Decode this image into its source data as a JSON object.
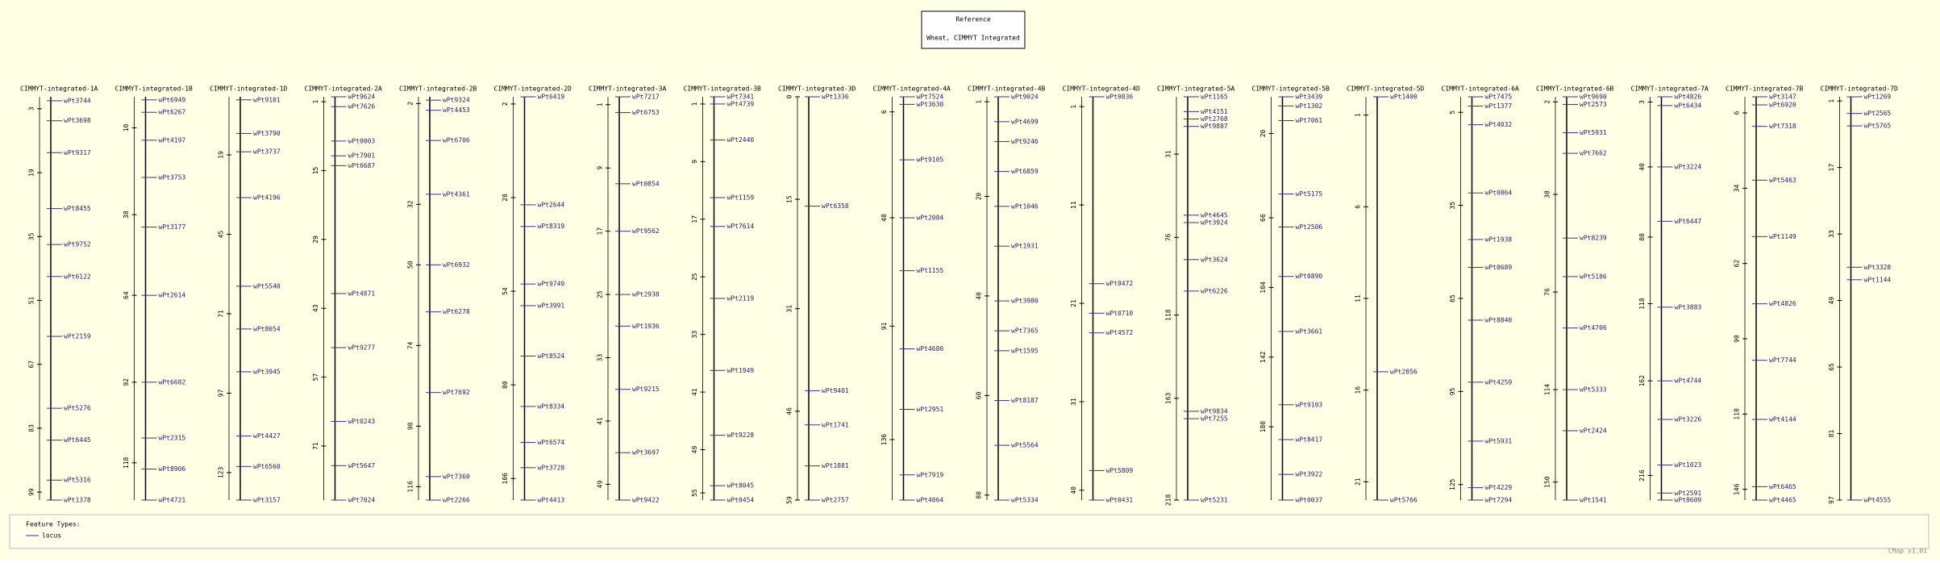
{
  "header": {
    "title": "Reference",
    "subtitle": "Wheat, CIMMYT Integrated"
  },
  "maps": [
    {
      "title": "CIMMYT-integrated-1A",
      "ylim": [
        0,
        101
      ],
      "ticks": [
        3,
        19,
        35,
        51,
        67,
        83,
        99
      ],
      "markers": [
        {
          "label": "wPt3744",
          "pos": 1
        },
        {
          "label": "wPt3698",
          "pos": 6
        },
        {
          "label": "wPt9317",
          "pos": 14
        },
        {
          "label": "wPt8455",
          "pos": 28
        },
        {
          "label": "wPt9752",
          "pos": 37
        },
        {
          "label": "wPt6122",
          "pos": 45
        },
        {
          "label": "wPt2159",
          "pos": 60
        },
        {
          "label": "wPt5276",
          "pos": 78
        },
        {
          "label": "wPt6445",
          "pos": 86
        },
        {
          "label": "wPt5316",
          "pos": 96
        },
        {
          "label": "wPt1378",
          "pos": 101
        }
      ]
    },
    {
      "title": "CIMMYT-integrated-1B",
      "ylim": [
        0,
        130
      ],
      "ticks": [
        10,
        38,
        64,
        92,
        118
      ],
      "markers": [
        {
          "label": "wPt6949",
          "pos": 1
        },
        {
          "label": "wPt6267",
          "pos": 5
        },
        {
          "label": "wPt4197",
          "pos": 14
        },
        {
          "label": "wPt3753",
          "pos": 26
        },
        {
          "label": "wPt3177",
          "pos": 42
        },
        {
          "label": "wPt2614",
          "pos": 64
        },
        {
          "label": "wPt6682",
          "pos": 92
        },
        {
          "label": "wPt2315",
          "pos": 110
        },
        {
          "label": "wPt8906",
          "pos": 120
        },
        {
          "label": "wPt4721",
          "pos": 130
        }
      ]
    },
    {
      "title": "CIMMYT-integrated-1D",
      "ylim": [
        0,
        132
      ],
      "ticks": [
        19,
        45,
        71,
        97,
        123
      ],
      "markers": [
        {
          "label": "wPt9101",
          "pos": 1
        },
        {
          "label": "wPt3790",
          "pos": 12
        },
        {
          "label": "wPt3737",
          "pos": 18
        },
        {
          "label": "wPt4196",
          "pos": 33
        },
        {
          "label": "wPt5540",
          "pos": 62
        },
        {
          "label": "wPt8054",
          "pos": 76
        },
        {
          "label": "wPt3945",
          "pos": 90
        },
        {
          "label": "wPt4427",
          "pos": 111
        },
        {
          "label": "wPt6560",
          "pos": 121
        },
        {
          "label": "wPt3157",
          "pos": 132
        }
      ]
    },
    {
      "title": "CIMMYT-integrated-2A",
      "ylim": [
        0,
        82
      ],
      "ticks": [
        1,
        15,
        29,
        43,
        57,
        71
      ],
      "markers": [
        {
          "label": "wPt9624",
          "pos": 0
        },
        {
          "label": "wPt7626",
          "pos": 2
        },
        {
          "label": "wPt0003",
          "pos": 9
        },
        {
          "label": "wPt7901",
          "pos": 12
        },
        {
          "label": "wPt6687",
          "pos": 14
        },
        {
          "label": "wPt4871",
          "pos": 40
        },
        {
          "label": "wPt9277",
          "pos": 51
        },
        {
          "label": "wPt0243",
          "pos": 66
        },
        {
          "label": "wPt5647",
          "pos": 75
        },
        {
          "label": "wPt7024",
          "pos": 82
        }
      ]
    },
    {
      "title": "CIMMYT-integrated-2B",
      "ylim": [
        0,
        120
      ],
      "ticks": [
        2,
        32,
        50,
        74,
        98,
        116
      ],
      "markers": [
        {
          "label": "wPt9324",
          "pos": 1
        },
        {
          "label": "wPt4453",
          "pos": 4
        },
        {
          "label": "wPt6706",
          "pos": 13
        },
        {
          "label": "wPt4361",
          "pos": 29
        },
        {
          "label": "wPt6932",
          "pos": 50
        },
        {
          "label": "wPt6278",
          "pos": 64
        },
        {
          "label": "wPt7692",
          "pos": 88
        },
        {
          "label": "wPt7360",
          "pos": 113
        },
        {
          "label": "wPt2266",
          "pos": 120
        }
      ]
    },
    {
      "title": "CIMMYT-integrated-2D",
      "ylim": [
        0,
        112
      ],
      "ticks": [
        2,
        28,
        54,
        80,
        106
      ],
      "markers": [
        {
          "label": "wPt6419",
          "pos": 0
        },
        {
          "label": "wPt2644",
          "pos": 30
        },
        {
          "label": "wPt8319",
          "pos": 36
        },
        {
          "label": "wPt9749",
          "pos": 52
        },
        {
          "label": "wPt3991",
          "pos": 58
        },
        {
          "label": "wPt8524",
          "pos": 72
        },
        {
          "label": "wPt8334",
          "pos": 86
        },
        {
          "label": "wPt6574",
          "pos": 96
        },
        {
          "label": "wPt3728",
          "pos": 103
        },
        {
          "label": "wPt4413",
          "pos": 112
        }
      ]
    },
    {
      "title": "CIMMYT-integrated-3A",
      "ylim": [
        0,
        51
      ],
      "ticks": [
        1,
        9,
        17,
        25,
        33,
        41,
        49
      ],
      "markers": [
        {
          "label": "wPt7217",
          "pos": 0
        },
        {
          "label": "wPt6753",
          "pos": 2
        },
        {
          "label": "wPt0854",
          "pos": 11
        },
        {
          "label": "wPt9562",
          "pos": 17
        },
        {
          "label": "wPt2938",
          "pos": 25
        },
        {
          "label": "wPt1936",
          "pos": 29
        },
        {
          "label": "wPt9215",
          "pos": 37
        },
        {
          "label": "wPt3697",
          "pos": 45
        },
        {
          "label": "wPt9422",
          "pos": 51
        }
      ]
    },
    {
      "title": "CIMMYT-integrated-3B",
      "ylim": [
        0,
        56
      ],
      "ticks": [
        1,
        9,
        17,
        25,
        33,
        41,
        49,
        55
      ],
      "markers": [
        {
          "label": "wPt7341",
          "pos": 0
        },
        {
          "label": "wPt4739",
          "pos": 1
        },
        {
          "label": "wPt2440",
          "pos": 6
        },
        {
          "label": "wPt1159",
          "pos": 14
        },
        {
          "label": "wPt7614",
          "pos": 18
        },
        {
          "label": "wPt2119",
          "pos": 28
        },
        {
          "label": "wPt1949",
          "pos": 38
        },
        {
          "label": "wPt9228",
          "pos": 47
        },
        {
          "label": "wPt8045",
          "pos": 54
        },
        {
          "label": "wPt0454",
          "pos": 56
        }
      ]
    },
    {
      "title": "CIMMYT-integrated-3D",
      "ylim": [
        0,
        59
      ],
      "ticks": [
        0,
        15,
        31,
        46,
        59
      ],
      "markers": [
        {
          "label": "wPt1336",
          "pos": 0
        },
        {
          "label": "wPt6358",
          "pos": 16
        },
        {
          "label": "wPt9401",
          "pos": 43
        },
        {
          "label": "wPt1741",
          "pos": 48
        },
        {
          "label": "wPt1881",
          "pos": 54
        },
        {
          "label": "wPt2757",
          "pos": 59
        }
      ]
    },
    {
      "title": "CIMMYT-integrated-4A",
      "ylim": [
        0,
        160
      ],
      "ticks": [
        6,
        48,
        91,
        136
      ],
      "markers": [
        {
          "label": "wPt7524",
          "pos": 0
        },
        {
          "label": "wPt3630",
          "pos": 3
        },
        {
          "label": "wPt9105",
          "pos": 25
        },
        {
          "label": "wPt2084",
          "pos": 48
        },
        {
          "label": "wPt1155",
          "pos": 69
        },
        {
          "label": "wPt4680",
          "pos": 100
        },
        {
          "label": "wPt2951",
          "pos": 124
        },
        {
          "label": "wPt7919",
          "pos": 150
        },
        {
          "label": "wPt4064",
          "pos": 160
        }
      ]
    },
    {
      "title": "CIMMYT-integrated-4B",
      "ylim": [
        0,
        81
      ],
      "ticks": [
        1,
        20,
        40,
        60,
        80
      ],
      "markers": [
        {
          "label": "wPt9024",
          "pos": 0
        },
        {
          "label": "wPt4699",
          "pos": 5
        },
        {
          "label": "wPt9246",
          "pos": 9
        },
        {
          "label": "wPt6859",
          "pos": 15
        },
        {
          "label": "wPt1046",
          "pos": 22
        },
        {
          "label": "wPt1931",
          "pos": 30
        },
        {
          "label": "wPt3980",
          "pos": 41
        },
        {
          "label": "wPt7365",
          "pos": 47
        },
        {
          "label": "wPt1595",
          "pos": 51
        },
        {
          "label": "wPt8187",
          "pos": 61
        },
        {
          "label": "wPt5564",
          "pos": 70
        },
        {
          "label": "wPt5334",
          "pos": 81
        }
      ]
    },
    {
      "title": "CIMMYT-integrated-4D",
      "ylim": [
        0,
        41
      ],
      "ticks": [
        1,
        11,
        21,
        31,
        40
      ],
      "markers": [
        {
          "label": "wPt0836",
          "pos": 0
        },
        {
          "label": "wPt0472",
          "pos": 19
        },
        {
          "label": "wPt0710",
          "pos": 22
        },
        {
          "label": "wPt4572",
          "pos": 24
        },
        {
          "label": "wPt5809",
          "pos": 38
        },
        {
          "label": "wPt0431",
          "pos": 41
        }
      ]
    },
    {
      "title": "CIMMYT-integrated-5A",
      "ylim": [
        0,
        218
      ],
      "ticks": [
        31,
        76,
        118,
        163,
        218
      ],
      "markers": [
        {
          "label": "wPt1165",
          "pos": 0
        },
        {
          "label": "wPt4151",
          "pos": 8
        },
        {
          "label": "wPt2768",
          "pos": 12
        },
        {
          "label": "wPt9887",
          "pos": 16
        },
        {
          "label": "wPt4645",
          "pos": 64
        },
        {
          "label": "wPt3924",
          "pos": 68
        },
        {
          "label": "wPt3624",
          "pos": 88
        },
        {
          "label": "wPt6226",
          "pos": 105
        },
        {
          "label": "wPt9834",
          "pos": 170
        },
        {
          "label": "wPt7255",
          "pos": 174
        },
        {
          "label": "wPt5231",
          "pos": 218
        }
      ]
    },
    {
      "title": "CIMMYT-integrated-5B",
      "ylim": [
        0,
        220
      ],
      "ticks": [
        20,
        66,
        104,
        142,
        180
      ],
      "markers": [
        {
          "label": "wPt3439",
          "pos": 0
        },
        {
          "label": "wPt1302",
          "pos": 5
        },
        {
          "label": "wPt7061",
          "pos": 13
        },
        {
          "label": "wPt5175",
          "pos": 53
        },
        {
          "label": "wPt2506",
          "pos": 71
        },
        {
          "label": "wPt0890",
          "pos": 98
        },
        {
          "label": "wPt3661",
          "pos": 128
        },
        {
          "label": "wPt9103",
          "pos": 168
        },
        {
          "label": "wPt8417",
          "pos": 187
        },
        {
          "label": "wPt3922",
          "pos": 206
        },
        {
          "label": "wPt0037",
          "pos": 220
        }
      ]
    },
    {
      "title": "CIMMYT-integrated-5D",
      "ylim": [
        0,
        22
      ],
      "ticks": [
        1,
        6,
        11,
        16,
        21
      ],
      "markers": [
        {
          "label": "wPt1400",
          "pos": 0
        },
        {
          "label": "wPt2856",
          "pos": 15
        },
        {
          "label": "wPt5766",
          "pos": 22
        }
      ]
    },
    {
      "title": "CIMMYT-integrated-6A",
      "ylim": [
        0,
        130
      ],
      "ticks": [
        5,
        35,
        65,
        95,
        125
      ],
      "markers": [
        {
          "label": "wPt7475",
          "pos": 0
        },
        {
          "label": "wPt1377",
          "pos": 3
        },
        {
          "label": "wPt4032",
          "pos": 9
        },
        {
          "label": "wPt0864",
          "pos": 31
        },
        {
          "label": "wPt1938",
          "pos": 46
        },
        {
          "label": "wPt0689",
          "pos": 55
        },
        {
          "label": "wPt8840",
          "pos": 72
        },
        {
          "label": "wPt4259",
          "pos": 92
        },
        {
          "label": "wPt5931",
          "pos": 111
        },
        {
          "label": "wPt4229",
          "pos": 126
        },
        {
          "label": "wPt7294",
          "pos": 130
        }
      ]
    },
    {
      "title": "CIMMYT-integrated-6B",
      "ylim": [
        0,
        157
      ],
      "ticks": [
        2,
        38,
        76,
        114,
        150
      ],
      "markers": [
        {
          "label": "wPt9690",
          "pos": 0
        },
        {
          "label": "wPt2573",
          "pos": 3
        },
        {
          "label": "wPt5931",
          "pos": 14
        },
        {
          "label": "wPt7662",
          "pos": 22
        },
        {
          "label": "wPt8239",
          "pos": 55
        },
        {
          "label": "wPt5186",
          "pos": 70
        },
        {
          "label": "wPt4706",
          "pos": 90
        },
        {
          "label": "wPt5333",
          "pos": 114
        },
        {
          "label": "wPt2424",
          "pos": 130
        },
        {
          "label": "wPt1541",
          "pos": 157
        }
      ]
    },
    {
      "title": "CIMMYT-integrated-7A",
      "ylim": [
        0,
        230
      ],
      "ticks": [
        3,
        40,
        80,
        118,
        162,
        216
      ],
      "markers": [
        {
          "label": "wPt4826",
          "pos": 0
        },
        {
          "label": "wPt6434",
          "pos": 5
        },
        {
          "label": "wPt3224",
          "pos": 40
        },
        {
          "label": "wPt6447",
          "pos": 71
        },
        {
          "label": "wPt3883",
          "pos": 120
        },
        {
          "label": "wPt4744",
          "pos": 162
        },
        {
          "label": "wPt3226",
          "pos": 184
        },
        {
          "label": "wPt1023",
          "pos": 210
        },
        {
          "label": "wPt2591",
          "pos": 226
        },
        {
          "label": "wPt8609",
          "pos": 230
        }
      ]
    },
    {
      "title": "CIMMYT-integrated-7B",
      "ylim": [
        0,
        150
      ],
      "ticks": [
        6,
        34,
        62,
        90,
        118,
        146
      ],
      "markers": [
        {
          "label": "wPt3147",
          "pos": 0
        },
        {
          "label": "wPt6920",
          "pos": 3
        },
        {
          "label": "wPt7318",
          "pos": 11
        },
        {
          "label": "wPt5463",
          "pos": 31
        },
        {
          "label": "wPt1149",
          "pos": 52
        },
        {
          "label": "wPt4826",
          "pos": 77
        },
        {
          "label": "wPt7744",
          "pos": 98
        },
        {
          "label": "wPt4144",
          "pos": 120
        },
        {
          "label": "wPt6465",
          "pos": 145
        },
        {
          "label": "wPt4465",
          "pos": 150
        }
      ]
    },
    {
      "title": "CIMMYT-integrated-7D",
      "ylim": [
        0,
        97
      ],
      "ticks": [
        1,
        17,
        33,
        49,
        65,
        81,
        97
      ],
      "markers": [
        {
          "label": "wPt1269",
          "pos": 0
        },
        {
          "label": "wPt2565",
          "pos": 4
        },
        {
          "label": "wPt5765",
          "pos": 7
        },
        {
          "label": "wPt3328",
          "pos": 41
        },
        {
          "label": "wPt1144",
          "pos": 44
        },
        {
          "label": "wPt4555",
          "pos": 97
        }
      ]
    }
  ],
  "legend": {
    "title": "Feature Types:",
    "items": [
      "locus"
    ]
  },
  "footer": "CMap v1.01"
}
